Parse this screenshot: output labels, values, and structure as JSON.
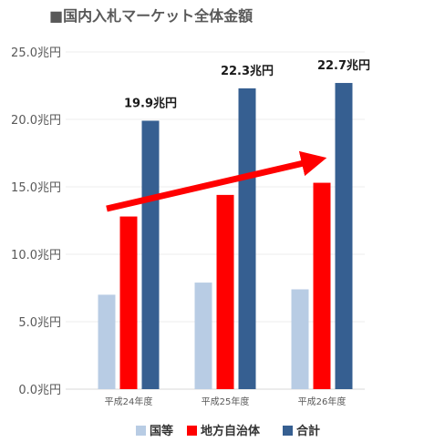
{
  "chart_data": {
    "type": "bar",
    "title": "■国内入札マーケット全体金額",
    "categories": [
      "平成24年度",
      "平成25年度",
      "平成26年度"
    ],
    "series": [
      {
        "name": "国等",
        "values": [
          7.0,
          7.9,
          7.4
        ],
        "color": "#b8cce4"
      },
      {
        "name": "地方自治体",
        "values": [
          12.8,
          14.4,
          15.3
        ],
        "color": "#ff0000"
      },
      {
        "name": "合計",
        "values": [
          19.9,
          22.3,
          22.7
        ],
        "color": "#365f91"
      }
    ],
    "data_labels": [
      "19.9兆円",
      "22.3兆円",
      "22.7兆円"
    ],
    "y_ticks": [
      "0.0兆円",
      "5.0兆円",
      "10.0兆円",
      "15.0兆円",
      "20.0兆円",
      "25.0兆円"
    ],
    "ylim": [
      0,
      25
    ],
    "grid": true,
    "legend_position": "bottom",
    "annotation": {
      "type": "trend-arrow",
      "color": "#ff0000"
    },
    "xlabel": "",
    "ylabel": ""
  }
}
